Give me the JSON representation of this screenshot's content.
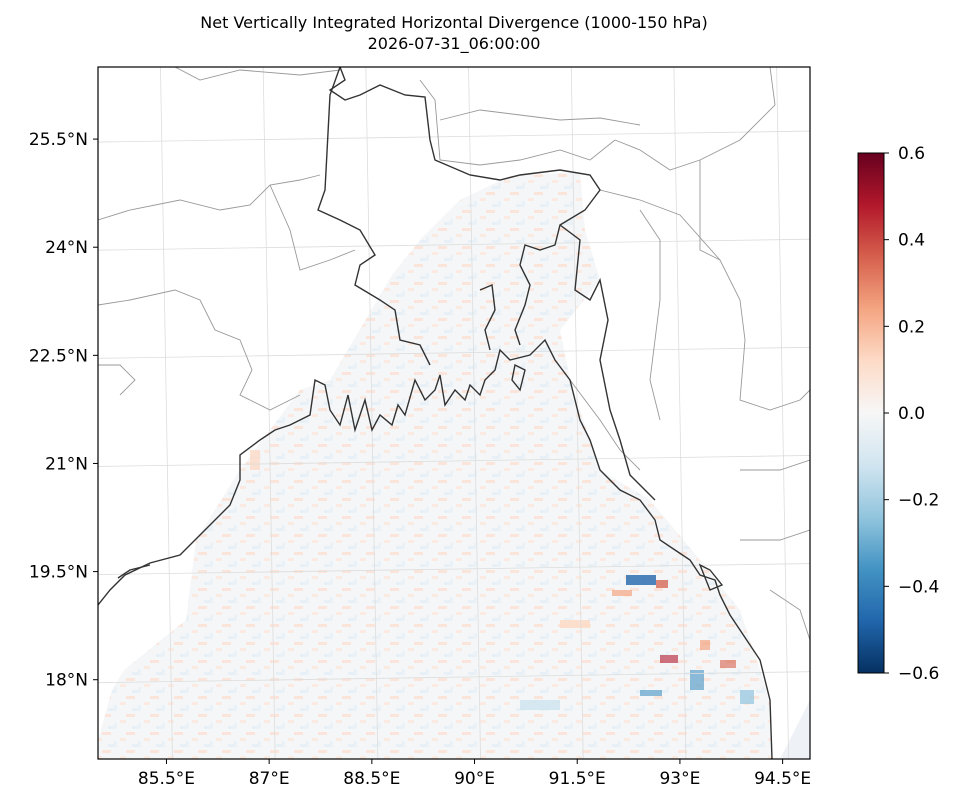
{
  "figure": {
    "title_line1": "Net Vertically Integrated Horizontal Divergence (1000-150 hPa)",
    "title_line2": "2026-07-31_06:00:00"
  },
  "map": {
    "lon_range": [
      84.5,
      94.9
    ],
    "lat_range": [
      16.9,
      26.5
    ],
    "lon_ticks": [
      {
        "value": 85.5,
        "label": "85.5°E"
      },
      {
        "value": 87.0,
        "label": "87°E"
      },
      {
        "value": 88.5,
        "label": "88.5°E"
      },
      {
        "value": 90.0,
        "label": "90°E"
      },
      {
        "value": 91.5,
        "label": "91.5°E"
      },
      {
        "value": 93.0,
        "label": "93°E"
      },
      {
        "value": 94.5,
        "label": "94.5°E"
      }
    ],
    "lat_ticks": [
      {
        "value": 25.5,
        "label": "25.5°N"
      },
      {
        "value": 24.0,
        "label": "24°N"
      },
      {
        "value": 22.5,
        "label": "22.5°N"
      },
      {
        "value": 21.0,
        "label": "21°N"
      },
      {
        "value": 19.5,
        "label": "19.5°N"
      },
      {
        "value": 18.0,
        "label": "18°N"
      }
    ],
    "gridlines": true,
    "colormap": "RdBu_r",
    "colors": {
      "coastline": "#333333",
      "state_borders": "#999999",
      "gridline": "#dddddd",
      "cmap_low": "#053061",
      "cmap_mid": "#f7f7f7",
      "cmap_high": "#67001f"
    }
  },
  "colorbar": {
    "vmin": -0.6,
    "vmax": 0.6,
    "ticks": [
      {
        "value": 0.6,
        "label": "0.6"
      },
      {
        "value": 0.4,
        "label": "0.4"
      },
      {
        "value": 0.2,
        "label": "0.2"
      },
      {
        "value": 0.0,
        "label": "0.0"
      },
      {
        "value": -0.2,
        "label": "−0.2"
      },
      {
        "value": -0.4,
        "label": "−0.4"
      },
      {
        "value": -0.6,
        "label": "−0.6"
      }
    ]
  }
}
